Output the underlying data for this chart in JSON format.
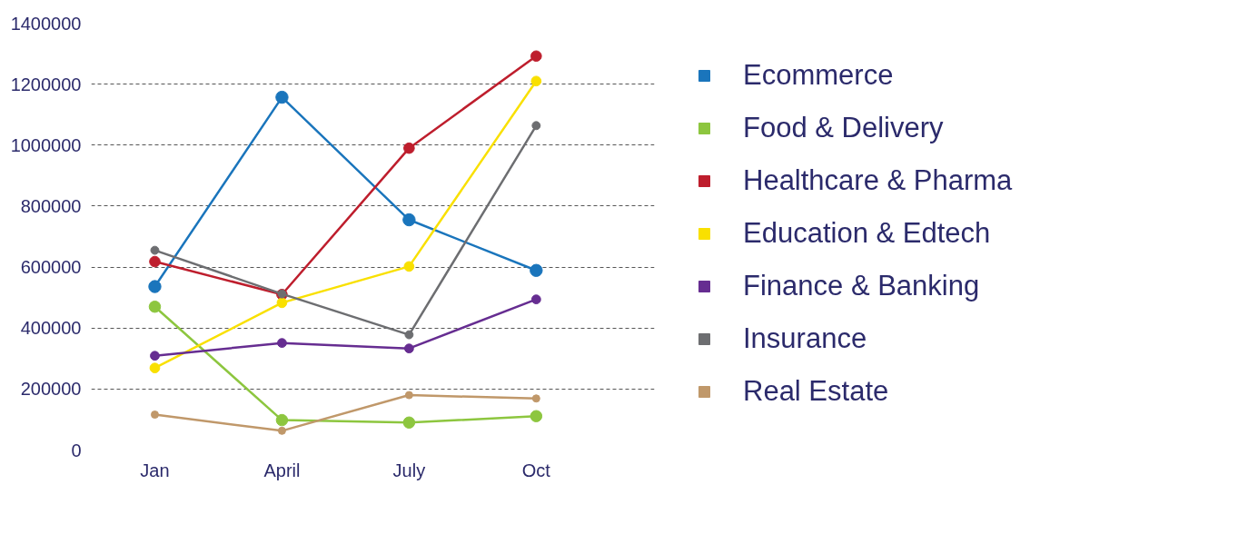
{
  "chart_data": {
    "type": "line",
    "categories": [
      "Jan",
      "April",
      "July",
      "Oct"
    ],
    "series": [
      {
        "name": "Ecommerce",
        "color": "#1a75bc",
        "values": [
          536000,
          1157000,
          755000,
          589000
        ]
      },
      {
        "name": "Food & Delivery",
        "color": "#8dc63f",
        "values": [
          470000,
          98000,
          90000,
          111000
        ]
      },
      {
        "name": "Healthcare & Pharma",
        "color": "#be1e2d",
        "values": [
          618000,
          510000,
          990000,
          1292000
        ]
      },
      {
        "name": "Education & Edtech",
        "color": "#f9e000",
        "values": [
          269000,
          483000,
          602000,
          1210000
        ]
      },
      {
        "name": "Finance & Banking",
        "color": "#662d91",
        "values": [
          309000,
          351000,
          333000,
          494000
        ]
      },
      {
        "name": "Insurance",
        "color": "#6d6e71",
        "values": [
          655000,
          512000,
          378000,
          1064000
        ]
      },
      {
        "name": "Real Estate",
        "color": "#c0986a",
        "values": [
          116000,
          63000,
          180000,
          169000
        ]
      }
    ],
    "ylim": [
      0,
      1400000
    ],
    "yticks": [
      0,
      200000,
      400000,
      600000,
      800000,
      1000000,
      1200000,
      1400000
    ],
    "grid": "y",
    "legend": "right",
    "marker": "circle",
    "line_style": "solid"
  }
}
